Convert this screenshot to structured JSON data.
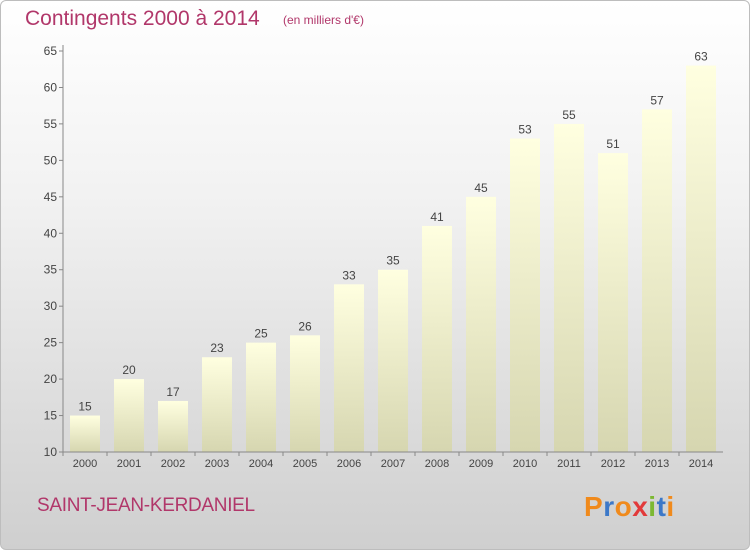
{
  "header": {
    "title": "Contingents 2000 à 2014",
    "subtitle": "(en milliers d'€)"
  },
  "footer": {
    "commune": "SAINT-JEAN-KERDANIEL",
    "logo": "Proxiti"
  },
  "colors": {
    "title": "#b1376a",
    "bar_top": "#ffffe0",
    "bar_bottom": "#d6d6b0",
    "logo_letters": [
      "#f08a1c",
      "#3c78c8",
      "#f08a1c",
      "#e23a3a",
      "#7cb832",
      "#3c78c8",
      "#f08a1c"
    ]
  },
  "chart_data": {
    "type": "bar",
    "title": "Contingents 2000 à 2014",
    "subtitle": "(en milliers d'€)",
    "categories": [
      "2000",
      "2001",
      "2002",
      "2003",
      "2004",
      "2005",
      "2006",
      "2007",
      "2008",
      "2009",
      "2010",
      "2011",
      "2012",
      "2013",
      "2014"
    ],
    "values": [
      15,
      20,
      17,
      23,
      25,
      26,
      33,
      35,
      41,
      45,
      53,
      55,
      51,
      57,
      63
    ],
    "ylim": [
      10,
      65
    ],
    "yticks": [
      10,
      15,
      20,
      25,
      30,
      35,
      40,
      45,
      50,
      55,
      60,
      65
    ],
    "grid": false,
    "data_labels": true
  }
}
